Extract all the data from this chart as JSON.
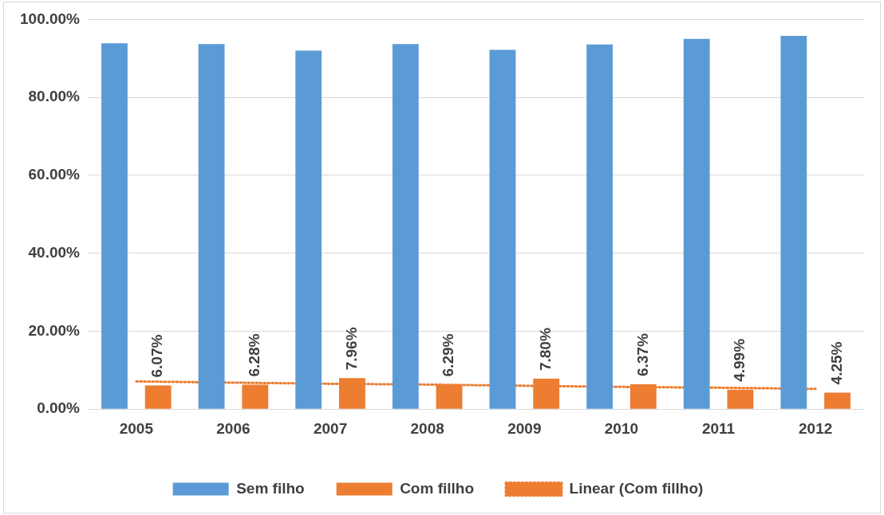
{
  "chart_data": {
    "type": "bar",
    "categories": [
      "2005",
      "2006",
      "2007",
      "2008",
      "2009",
      "2010",
      "2011",
      "2012"
    ],
    "series": [
      {
        "name": "Sem filho",
        "color": "#5b9bd5",
        "values": [
          93.9,
          93.7,
          92.0,
          93.7,
          92.2,
          93.6,
          95.0,
          95.8
        ]
      },
      {
        "name": "Com fillho",
        "color": "#ed7d31",
        "values": [
          6.07,
          6.28,
          7.96,
          6.29,
          7.8,
          6.37,
          4.99,
          4.25
        ],
        "value_labels": [
          "6.07%",
          "6.28%",
          "7.96%",
          "6.29%",
          "7.80%",
          "6.37%",
          "4.99%",
          "4.25%"
        ]
      },
      {
        "name": "Linear (Com fillho)",
        "type": "line",
        "color": "#ed7d31",
        "line_style": "dotted",
        "values": [
          7.1,
          6.8,
          6.5,
          6.3,
          6.0,
          5.7,
          5.5,
          5.2
        ]
      }
    ],
    "ylim": [
      0,
      100
    ],
    "yticks": [
      {
        "value": 0,
        "label": "0.00%"
      },
      {
        "value": 20,
        "label": "20.00%"
      },
      {
        "value": 40,
        "label": "40.00%"
      },
      {
        "value": 60,
        "label": "60.00%"
      },
      {
        "value": 80,
        "label": "80.00%"
      },
      {
        "value": 100,
        "label": "100.00%"
      }
    ],
    "grid": "y",
    "legend": "bottom",
    "marker": "none"
  }
}
